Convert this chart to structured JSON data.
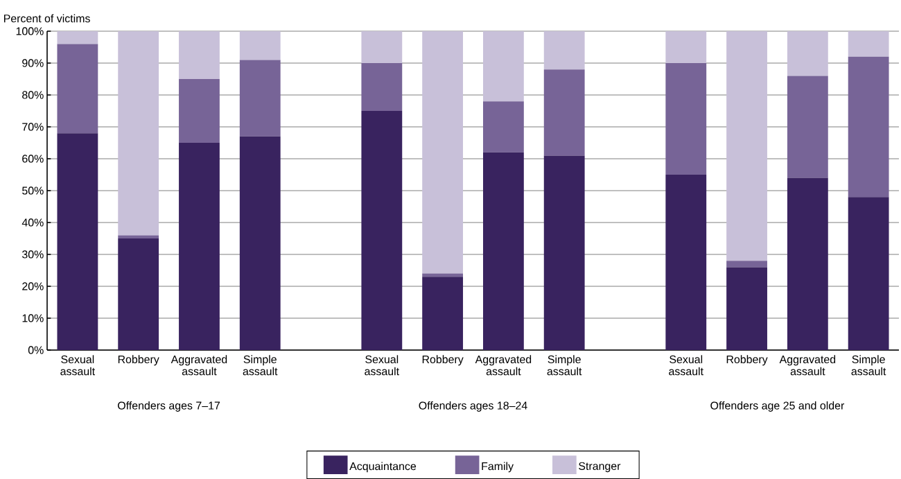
{
  "chart_data": {
    "type": "bar",
    "stacked": true,
    "ylabel": "Percent of victims",
    "categories": [
      "Sexual assault",
      "Robbery",
      "Aggravated assault",
      "Simple assault",
      null,
      "Sexual assault",
      "Robbery",
      "Aggravated assault",
      "Simple assault",
      null,
      "Sexual assault",
      "Robbery",
      "Aggravated assault",
      "Simple assault"
    ],
    "series": [
      {
        "name": "Acquaintance",
        "color": "#39235f",
        "values": [
          68,
          35,
          65,
          67,
          null,
          75,
          23,
          62,
          61,
          null,
          55,
          26,
          54,
          48
        ]
      },
      {
        "name": "Family",
        "color": "#776497",
        "values": [
          28,
          1,
          20,
          24,
          null,
          15,
          1,
          16,
          27,
          null,
          35,
          2,
          32,
          44
        ]
      },
      {
        "name": "Stranger",
        "color": "#c8c0d9",
        "values": [
          4,
          64,
          15,
          9,
          null,
          10,
          76,
          22,
          12,
          null,
          10,
          72,
          14,
          8
        ]
      }
    ],
    "ylim": [
      0,
      100
    ],
    "yticks": [
      {
        "value": 0,
        "label": "0%"
      },
      {
        "value": 10,
        "label": "10%"
      },
      {
        "value": 20,
        "label": "20%"
      },
      {
        "value": 30,
        "label": "30%"
      },
      {
        "value": 40,
        "label": "40%"
      },
      {
        "value": 50,
        "label": "50%"
      },
      {
        "value": 60,
        "label": "60%"
      },
      {
        "value": 70,
        "label": "70%"
      },
      {
        "value": 80,
        "label": "80%"
      },
      {
        "value": 90,
        "label": "90%"
      },
      {
        "value": 100,
        "label": "100%"
      }
    ],
    "grid": "y",
    "legend": "bottom",
    "annotations": [
      "Offenders ages 7–17",
      "Offenders ages 18–24",
      "Offenders age 25 and older"
    ]
  }
}
